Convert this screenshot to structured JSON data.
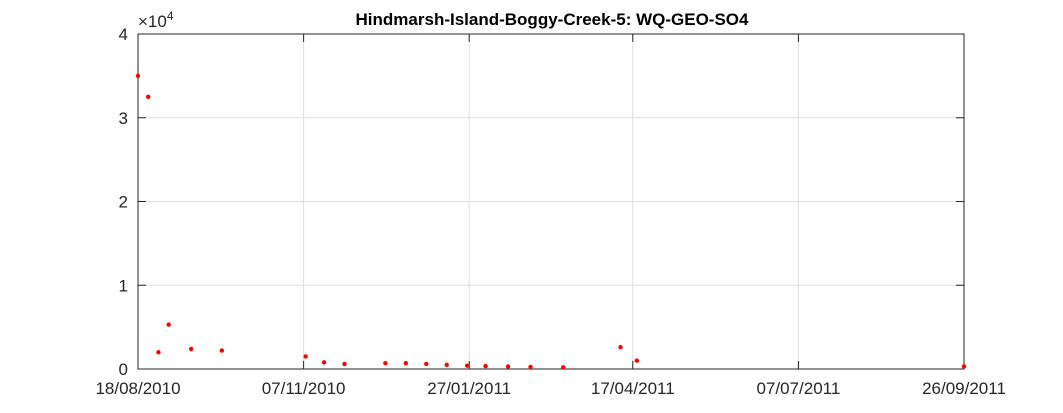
{
  "chart_data": {
    "type": "scatter",
    "title": "Hindmarsh-Island-Boggy-Creek-5: WQ-GEO-SO4",
    "xlabel": "",
    "ylabel": "",
    "x_ticks": [
      "18/08/2010",
      "07/11/2010",
      "27/01/2011",
      "17/04/2011",
      "07/07/2011",
      "26/09/2011"
    ],
    "x_range": [
      "18/08/2010",
      "26/09/2011"
    ],
    "y_ticks": [
      "0",
      "1",
      "2",
      "3",
      "4"
    ],
    "y_multiplier": {
      "base": "×10",
      "exponent": "4"
    },
    "ylim": [
      0,
      40000
    ],
    "grid": true,
    "legend": "none",
    "colors": {
      "marker": "#ff0000",
      "axes": "#262626",
      "grid": "#dfdfdf"
    },
    "series": [
      {
        "x": [
          "18/08/2010",
          "23/08/2010",
          "28/08/2010",
          "02/09/2010",
          "13/09/2010",
          "28/09/2010",
          "08/11/2010",
          "17/11/2010",
          "27/11/2010",
          "17/12/2010",
          "27/12/2010",
          "06/01/2011",
          "16/01/2011",
          "26/01/2011",
          "04/02/2011",
          "15/02/2011",
          "26/02/2011",
          "14/03/2011",
          "11/04/2011",
          "19/04/2011",
          "26/09/2011"
        ],
        "y": [
          35000,
          32500,
          2000,
          5300,
          2400,
          2200,
          1500,
          800,
          600,
          700,
          700,
          600,
          500,
          400,
          350,
          300,
          250,
          200,
          2600,
          1000,
          300
        ]
      }
    ]
  }
}
